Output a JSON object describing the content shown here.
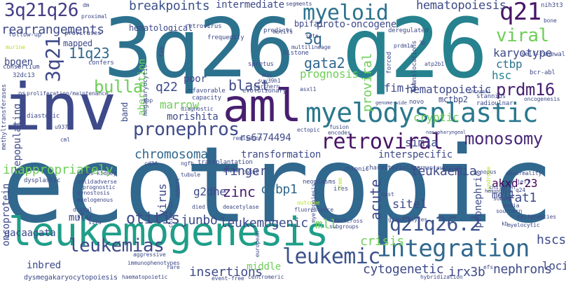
{
  "word_cloud": {
    "background": "#ffffff",
    "palette": [
      "#440154",
      "#482878",
      "#3e4a89",
      "#31688e",
      "#26828e",
      "#1f9e89",
      "#35b779",
      "#6ece58",
      "#b5de2b",
      "#fde725"
    ],
    "words": {
      "ecotropic": "ecotropic",
      "q26_big": "3q26",
      "q26_right": "q26",
      "inv": "inv",
      "aml": "aml",
      "leukemogenesis": "leukemogenesis",
      "myelodysplastic": "myelodysplastic",
      "integration": "integration",
      "retroviral": "retroviral",
      "q21q26": "3q21q26",
      "q21q26_2": "q21q26.2",
      "myeloid": "myeloid",
      "leukemias": "leukemias",
      "leukemic": "leukemic",
      "pronephros": "pronephros",
      "monosomy": "monosomy",
      "q21_top": "q21",
      "viral": "viral",
      "bulla": "bulla",
      "prdm16": "prdm16",
      "q21_vert": "3q21",
      "q11q23": "11q23",
      "breakpoints": "breakpoints",
      "rearrangements": "rearrangements",
      "hematopoiesis": "hematopoiesis",
      "karyotype": "karyotype",
      "hematopoietic": "hematopoietic",
      "ctbp": "ctbp",
      "hsc": "hsc",
      "gata2": "gata2",
      "q3": "3q",
      "chromosomal": "chromosomal",
      "inappropriately": "inappropriately",
      "otitis": "otitis",
      "junbo": "junbo",
      "leukemogenic": "leukemogenic",
      "crisis": "crisis",
      "cytogenetic": "cytogenetic",
      "insertions": "insertions",
      "finger": "finger",
      "zinc": "zinc",
      "acute": "acute",
      "ctbp1": "ctbp1",
      "leukaemia": "leukaemia",
      "rat1": "rat1",
      "akxd23": "akxd-23",
      "mel1": "mel1",
      "site1": "site1",
      "nephrons": "nephrons",
      "irx3b": "irx3b",
      "hscs": "hscs",
      "loci": "loci",
      "transformation": "transformation",
      "sim1a": "sim1a",
      "interspecific": "interspecific",
      "cryptic": "cryptic",
      "fim3": "fim-3",
      "blast": "blast",
      "marrow": "marrow",
      "morishita": "morishita",
      "rs6774494": "rs6774494",
      "q22": "q22",
      "prognosis": "prognosis",
      "proviral": "proviral",
      "mctbp2": "mctbp2",
      "pronephric": "pronephric",
      "mll": "mll",
      "gacaagata": "gacaagata",
      "mulv": "mulv",
      "g2dhe": "g2dhe",
      "virus": "virus",
      "bpgen": "bpgen",
      "poor": "poor",
      "aberration": "aberration",
      "hematological": "hematological",
      "intermediate": "intermediate",
      "protooncogene": "proto-oncogene",
      "bpifa1": "bpifa1",
      "mapped": "mapped",
      "oncoprotein": "oncoprotein",
      "repopulating": "repopulating",
      "inbred": "inbred",
      "middle": "middle",
      "band": "band",
      "dysmegakaryocytopoiesis": "dysmegakaryocytopoiesis",
      "segments": "segments",
      "retrovirus": "retrovirus",
      "frequently": "frequently",
      "predicts": "predicts",
      "motifs": "motifs",
      "deregulated": "deregulated",
      "nih3t3": "nih3t3",
      "bone": "bone",
      "selfrenewal": "self-renewal",
      "bcrabl": "bcr-abl",
      "proviruses": "proviruses",
      "followup": "follow-up",
      "proximal": "proximal",
      "murine": "murine",
      "consortium": "consortium",
      "confers": "confers",
      "q32dc13": "32dc13",
      "os": "os",
      "proliferationmaintenance": "proliferation/maintenance",
      "methyltransferases": "methyltransferases",
      "diastolic": "diastolic",
      "u937": "u937",
      "cml": "cml",
      "dysplastic": "dysplastic",
      "histone": "histone",
      "multilineage": "multilineage",
      "sets": "sets",
      "b3": "3b",
      "prdm1a": "prdm1a",
      "atp2b1": "atp2b1",
      "megakaryocytic": "megakaryocytic",
      "spretus": "spretus",
      "mus": "mus",
      "suv39h1": "suv39h1",
      "northern": "northern",
      "evolutionary": "evolutionary",
      "unfavorable": "unfavorable",
      "capacity": "capacity",
      "sbp": "sbp",
      "diagnostic": "diagnostic",
      "asxl1": "asxl1",
      "genomewide": "genome-wide",
      "novo": "novo",
      "stannius": "stannius",
      "radioulnar": "radioulnar",
      "oncogenesis": "oncogenesis",
      "internal": "internal",
      "translocations": "translocations",
      "forced": "forced",
      "ngfb": "ngfb",
      "cd34": "cd34",
      "transplantation": "transplantation",
      "remission": "remission",
      "ectopic": "ectopic",
      "fusion": "fusion",
      "encodes": "encodes",
      "nasopharyngeal": "nasopharyngeal",
      "sh2b3": "sh2b3",
      "tubule": "tubule",
      "chronic": "chronic",
      "characteristics": "characteristics",
      "germanaustrian": "german-austrian",
      "codes": "codes",
      "kidney": "kidney",
      "solid": "solid",
      "adverse": "adverse",
      "prognostic": "prognostic",
      "synostosis": "synostosis",
      "cakut": "cakut",
      "cohort": "cohort",
      "chimeric": "chimeric",
      "neoplasms": "neoplasms",
      "ires": "ires",
      "stem": "stem",
      "xenopus": "xenopus",
      "abnormality": "abnormality",
      "syndrome": "syndrome",
      "jeff": "jeff",
      "q24": "q24",
      "hemophilus": "hemophilus",
      "children": "children",
      "subset": "subset",
      "media": "media",
      "deacetylase": "deacetylase",
      "fluorescence": "fluorescence",
      "outcome": "outcome",
      "myelopoiesis": "myelopoiesis",
      "east": "east",
      "myelogenous": "myelogenous",
      "distal": "distal",
      "situ": "situ",
      "hlx": "hlx",
      "died": "died",
      "backcross": "backcross",
      "subgroups": "subgroups",
      "granulocytes": "granulocytes",
      "kb": "kb",
      "myelocytic": "myelocytic",
      "malignancies": "malignancies",
      "southern": "southern",
      "immunophenotypes": "immunophenotypes",
      "aggressive": "aggressive",
      "european": "european",
      "rare": "rare",
      "haematopoietic": "haematopoietic",
      "eventfree": "event-free",
      "centromeric": "centromeric",
      "hybridization": "hybridization",
      "efs": "efs",
      "fab": "fab",
      "dm": "dm"
    }
  }
}
